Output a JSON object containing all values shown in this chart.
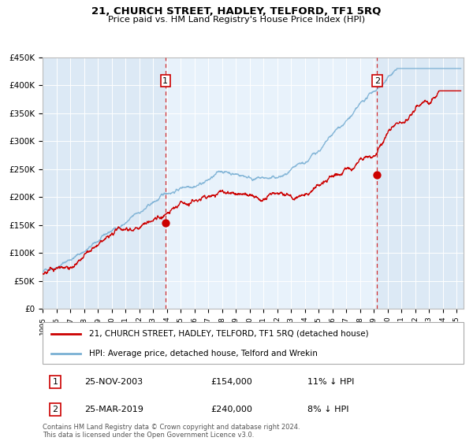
{
  "title": "21, CHURCH STREET, HADLEY, TELFORD, TF1 5RQ",
  "subtitle": "Price paid vs. HM Land Registry's House Price Index (HPI)",
  "legend_label_red": "21, CHURCH STREET, HADLEY, TELFORD, TF1 5RQ (detached house)",
  "legend_label_blue": "HPI: Average price, detached house, Telford and Wrekin",
  "annotation1_date": "25-NOV-2003",
  "annotation1_price": "£154,000",
  "annotation1_hpi": "11% ↓ HPI",
  "annotation1_year": 2003.9,
  "annotation1_value": 154000,
  "annotation2_date": "25-MAR-2019",
  "annotation2_price": "£240,000",
  "annotation2_hpi": "8% ↓ HPI",
  "annotation2_year": 2019.23,
  "annotation2_value": 240000,
  "xmin": 1995,
  "xmax": 2025,
  "ymin": 0,
  "ymax": 450000,
  "bg_color": "#dce9f5",
  "red_color": "#cc0000",
  "blue_color": "#7ab0d4",
  "footer": "Contains HM Land Registry data © Crown copyright and database right 2024.\nThis data is licensed under the Open Government Licence v3.0."
}
